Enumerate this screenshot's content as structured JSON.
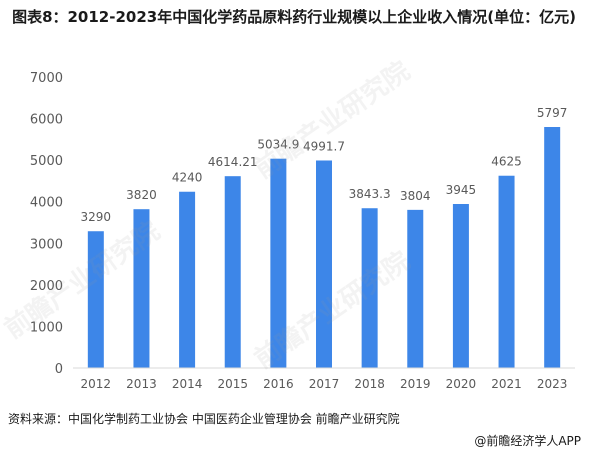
{
  "title": "图表8：2012-2023年中国化学药品原料药行业规模以上企业收入情况(单位：亿元)",
  "source": "资料来源：中国化学制药工业协会 中国医药企业管理协会 前瞻产业研究院",
  "credit": "@前瞻经济学人APP",
  "watermark_text": "前瞻产业研究院",
  "colors": {
    "bar": "#3d86e8",
    "axis": "#d9d9d9",
    "text": "#595959"
  },
  "chart_data": {
    "type": "bar",
    "categories": [
      "2012",
      "2013",
      "2014",
      "2015",
      "2016",
      "2017",
      "2018",
      "2019",
      "2020",
      "2021",
      "2023"
    ],
    "values": [
      3290,
      3820,
      4240,
      4614.21,
      5034.9,
      4991.7,
      3843.3,
      3804,
      3945,
      4625,
      5797
    ],
    "labels": [
      "3290",
      "3820",
      "4240",
      "4614.21",
      "5034.9",
      "4991.7",
      "3843.3",
      "3804",
      "3945",
      "4625",
      "5797"
    ],
    "yticks": [
      "0",
      "1000",
      "2000",
      "3000",
      "4000",
      "5000",
      "6000",
      "7000"
    ],
    "ylim": [
      0,
      7000
    ],
    "grid": false,
    "xlabel": "",
    "ylabel": ""
  }
}
